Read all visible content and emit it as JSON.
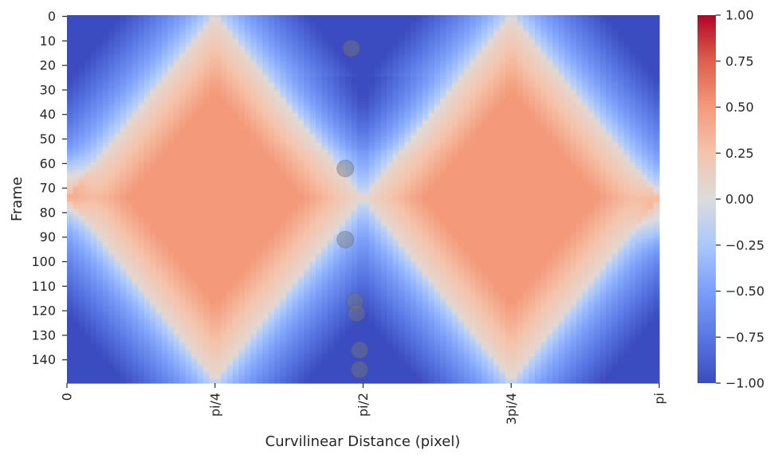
{
  "chart_data": {
    "type": "heatmap",
    "title": "",
    "xlabel": "Curvilinear Distance (pixel)",
    "ylabel": "Frame",
    "x_ticks": [
      {
        "label": "0",
        "pos": 0.0
      },
      {
        "label": "pi/4",
        "pos": 0.25
      },
      {
        "label": "pi/2",
        "pos": 0.5
      },
      {
        "label": "3pi/4",
        "pos": 0.75
      },
      {
        "label": "pi",
        "pos": 1.0
      }
    ],
    "y_ticks": [
      0,
      10,
      20,
      30,
      40,
      50,
      60,
      70,
      80,
      90,
      100,
      110,
      120,
      130,
      140
    ],
    "frames": 150,
    "colormap": "coolwarm",
    "colors": {
      "low": "#3b4cc0",
      "mid": "#dddddd",
      "high": "#b40426"
    },
    "colorbar": {
      "min": -1.0,
      "max": 1.0,
      "ticks": [
        "−1.00",
        "−0.75",
        "−0.50",
        "−0.25",
        "0.00",
        "0.25",
        "0.50",
        "0.75",
        "1.00"
      ],
      "tick_values": [
        -1.0,
        -0.75,
        -0.5,
        -0.25,
        0.0,
        0.25,
        0.5,
        0.75,
        1.0
      ]
    },
    "markers": [
      {
        "x": 0.48,
        "frame": 13
      },
      {
        "x": 0.47,
        "frame": 62
      },
      {
        "x": 0.47,
        "frame": 91
      },
      {
        "x": 0.486,
        "frame": 116
      },
      {
        "x": 0.489,
        "frame": 121
      },
      {
        "x": 0.494,
        "frame": 136
      },
      {
        "x": 0.494,
        "frame": 144
      }
    ]
  }
}
